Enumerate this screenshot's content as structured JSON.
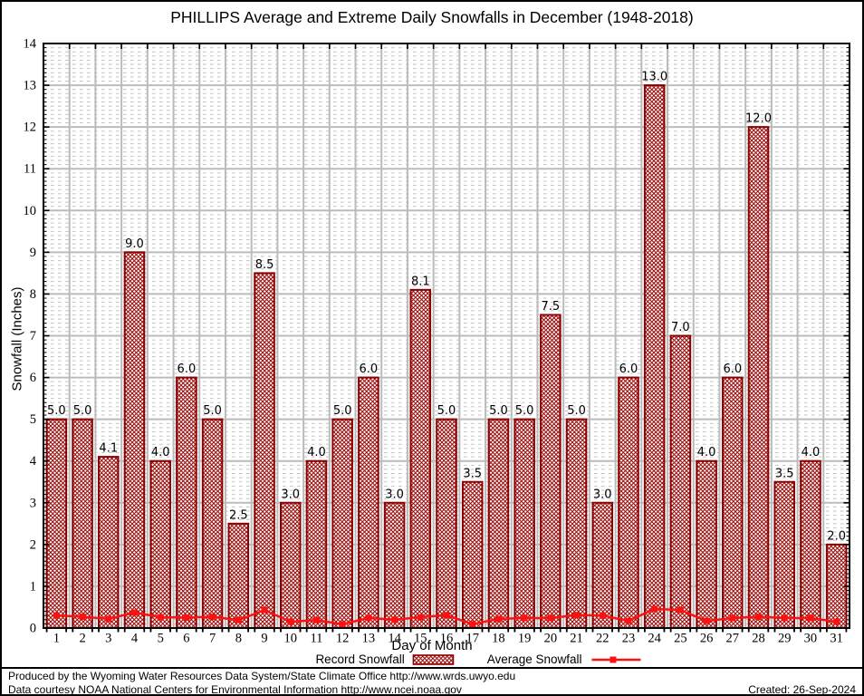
{
  "chart": {
    "title": "PHILLIPS Average and Extreme Daily Snowfalls in December (1948-2018)",
    "xlabel": "Day of Month",
    "ylabel": "Snowfall (Inches)"
  },
  "legend": {
    "record_label": "Record Snowfall",
    "average_label": "Average Snowfall"
  },
  "footer": {
    "line1": "Produced by the Wyoming Water Resources Data System/State Climate Office http://www.wrds.uwyo.edu",
    "line2": "Data courtesy NOAA National Centers for Environmental Information http://www.ncei.noaa.gov",
    "created": "Created: 26-Sep-2024"
  },
  "chart_data": {
    "type": "bar",
    "title": "PHILLIPS Average and Extreme Daily Snowfalls in December (1948-2018)",
    "xlabel": "Day of Month",
    "ylabel": "Snowfall (Inches)",
    "categories": [
      1,
      2,
      3,
      4,
      5,
      6,
      7,
      8,
      9,
      10,
      11,
      12,
      13,
      14,
      15,
      16,
      17,
      18,
      19,
      20,
      21,
      22,
      23,
      24,
      25,
      26,
      27,
      28,
      29,
      30,
      31
    ],
    "series": [
      {
        "name": "Record Snowfall",
        "type": "bar",
        "values": [
          5.0,
          5.0,
          4.1,
          9.0,
          4.0,
          6.0,
          5.0,
          2.5,
          8.5,
          3.0,
          4.0,
          5.0,
          6.0,
          3.0,
          8.1,
          5.0,
          3.5,
          5.0,
          5.0,
          7.5,
          5.0,
          3.0,
          6.0,
          13.0,
          7.0,
          4.0,
          6.0,
          12.0,
          3.5,
          4.0,
          2.0
        ]
      },
      {
        "name": "Average Snowfall",
        "type": "line",
        "values": [
          0.3,
          0.27,
          0.22,
          0.37,
          0.26,
          0.25,
          0.27,
          0.19,
          0.43,
          0.15,
          0.19,
          0.09,
          0.24,
          0.2,
          0.26,
          0.31,
          0.09,
          0.22,
          0.24,
          0.24,
          0.31,
          0.3,
          0.17,
          0.46,
          0.43,
          0.17,
          0.24,
          0.27,
          0.24,
          0.24,
          0.15
        ]
      }
    ],
    "ylim": [
      0,
      14
    ],
    "ytick_step": 1,
    "yminor_step": 0.1,
    "bar_labels_decimals": 1,
    "grid": true,
    "legend_position": "bottom",
    "colors": {
      "bar_border": "#8b0000",
      "bar_hatch": "#9e1010",
      "avg_line": "#ff1010",
      "grid_major": "#bbbbbb",
      "grid_minor": "#c2c2c2",
      "frame": "#000000"
    }
  }
}
